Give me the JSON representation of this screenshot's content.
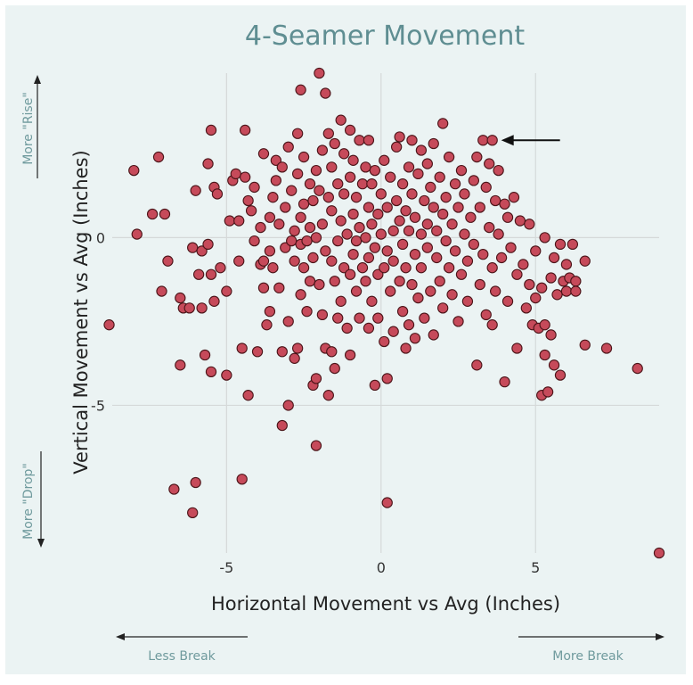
{
  "chart_data": {
    "type": "scatter",
    "title": "4-Seamer Movement",
    "xlabel": "Horizontal Movement vs Avg (Inches)",
    "ylabel": "Vertical Movement vs Avg (Inches)",
    "xlim": [
      -8.7,
      9.0
    ],
    "ylim": [
      -9.4,
      4.9
    ],
    "xticks": [
      -5,
      0,
      5
    ],
    "yticks": [
      -5,
      0
    ],
    "grid": true,
    "annotations": {
      "y_top": "More \"Rise\"",
      "y_bottom": "More \"Drop\"",
      "x_left": "Less Break",
      "x_right": "More Break",
      "arrow_target": {
        "x": 3.6,
        "y": 2.9
      }
    },
    "colors": {
      "marker": "#c64a5a",
      "marker_edge": "#4a1418",
      "title": "#5f8e92",
      "background": "#ebf3f3"
    },
    "points": [
      [
        -8.8,
        -2.6
      ],
      [
        -8.0,
        2.0
      ],
      [
        -7.9,
        0.1
      ],
      [
        -7.4,
        0.7
      ],
      [
        -7.2,
        2.4
      ],
      [
        -7.1,
        -1.6
      ],
      [
        -7.0,
        0.7
      ],
      [
        -6.9,
        -0.7
      ],
      [
        -6.7,
        -7.5
      ],
      [
        -6.5,
        -3.8
      ],
      [
        -6.5,
        -1.8
      ],
      [
        -6.4,
        -2.1
      ],
      [
        -6.2,
        -2.1
      ],
      [
        -6.1,
        -0.3
      ],
      [
        -6.1,
        -8.2
      ],
      [
        -6.0,
        -7.3
      ],
      [
        -6.0,
        1.4
      ],
      [
        -5.9,
        -1.1
      ],
      [
        -5.8,
        -0.4
      ],
      [
        -5.8,
        -2.1
      ],
      [
        -5.7,
        -3.5
      ],
      [
        -5.6,
        -0.2
      ],
      [
        -5.6,
        2.2
      ],
      [
        -5.5,
        3.2
      ],
      [
        -5.5,
        -4.0
      ],
      [
        -5.5,
        -1.1
      ],
      [
        -5.4,
        1.5
      ],
      [
        -5.4,
        -1.9
      ],
      [
        -5.3,
        1.3
      ],
      [
        -5.2,
        -0.9
      ],
      [
        -5.0,
        -1.6
      ],
      [
        -5.0,
        -4.1
      ],
      [
        -4.9,
        0.5
      ],
      [
        -4.8,
        1.7
      ],
      [
        -4.7,
        1.9
      ],
      [
        -4.6,
        0.5
      ],
      [
        -4.6,
        -0.7
      ],
      [
        -4.5,
        -7.2
      ],
      [
        -4.5,
        -3.3
      ],
      [
        -4.4,
        1.8
      ],
      [
        -4.4,
        3.2
      ],
      [
        -4.3,
        1.1
      ],
      [
        -4.3,
        -4.7
      ],
      [
        -4.2,
        0.8
      ],
      [
        -4.1,
        -0.1
      ],
      [
        -4.1,
        1.5
      ],
      [
        -4.0,
        -3.4
      ],
      [
        -3.9,
        -0.8
      ],
      [
        -3.9,
        0.3
      ],
      [
        -3.8,
        -1.5
      ],
      [
        -3.8,
        2.5
      ],
      [
        -3.8,
        -0.7
      ],
      [
        -3.7,
        -2.6
      ],
      [
        -3.6,
        -2.2
      ],
      [
        -3.6,
        -0.4
      ],
      [
        -3.6,
        0.6
      ],
      [
        -3.5,
        -0.9
      ],
      [
        -3.5,
        1.2
      ],
      [
        -3.4,
        1.7
      ],
      [
        -3.4,
        2.3
      ],
      [
        -3.3,
        -1.5
      ],
      [
        -3.3,
        0.4
      ],
      [
        -3.2,
        -3.4
      ],
      [
        -3.2,
        -5.6
      ],
      [
        -3.2,
        2.1
      ],
      [
        -3.1,
        -0.3
      ],
      [
        -3.1,
        0.9
      ],
      [
        -3.0,
        -2.5
      ],
      [
        -3.0,
        -5.0
      ],
      [
        -3.0,
        2.7
      ],
      [
        -2.9,
        -0.1
      ],
      [
        -2.9,
        1.4
      ],
      [
        -2.8,
        -0.7
      ],
      [
        -2.8,
        -3.6
      ],
      [
        -2.8,
        0.2
      ],
      [
        -2.7,
        -3.3
      ],
      [
        -2.7,
        1.9
      ],
      [
        -2.7,
        3.1
      ],
      [
        -2.6,
        -1.7
      ],
      [
        -2.6,
        -0.2
      ],
      [
        -2.6,
        0.6
      ],
      [
        -2.6,
        4.4
      ],
      [
        -2.5,
        -0.9
      ],
      [
        -2.5,
        1.0
      ],
      [
        -2.5,
        2.4
      ],
      [
        -2.4,
        -2.2
      ],
      [
        -2.4,
        -0.1
      ],
      [
        -2.3,
        -1.3
      ],
      [
        -2.3,
        0.3
      ],
      [
        -2.3,
        1.6
      ],
      [
        -2.2,
        -4.4
      ],
      [
        -2.2,
        -0.6
      ],
      [
        -2.2,
        1.1
      ],
      [
        -2.1,
        -6.2
      ],
      [
        -2.1,
        -4.2
      ],
      [
        -2.1,
        0.0
      ],
      [
        -2.1,
        2.0
      ],
      [
        -2.0,
        -1.4
      ],
      [
        -2.0,
        1.4
      ],
      [
        -2.0,
        4.9
      ],
      [
        -1.9,
        -2.3
      ],
      [
        -1.9,
        0.4
      ],
      [
        -1.9,
        2.6
      ],
      [
        -1.8,
        -3.3
      ],
      [
        -1.8,
        -0.4
      ],
      [
        -1.8,
        4.3
      ],
      [
        -1.7,
        -4.7
      ],
      [
        -1.7,
        1.2
      ],
      [
        -1.7,
        3.1
      ],
      [
        -1.6,
        -3.4
      ],
      [
        -1.6,
        -0.7
      ],
      [
        -1.6,
        0.8
      ],
      [
        -1.6,
        2.1
      ],
      [
        -1.5,
        -1.3
      ],
      [
        -1.5,
        -3.9
      ],
      [
        -1.5,
        2.8
      ],
      [
        -1.4,
        -0.1
      ],
      [
        -1.4,
        1.6
      ],
      [
        -1.4,
        -2.4
      ],
      [
        -1.3,
        -1.9
      ],
      [
        -1.3,
        0.5
      ],
      [
        -1.3,
        3.5
      ],
      [
        -1.2,
        -0.9
      ],
      [
        -1.2,
        1.3
      ],
      [
        -1.2,
        2.5
      ],
      [
        -1.1,
        -2.7
      ],
      [
        -1.1,
        0.1
      ],
      [
        -1.0,
        -3.5
      ],
      [
        -1.0,
        -1.1
      ],
      [
        -1.0,
        1.8
      ],
      [
        -1.0,
        3.2
      ],
      [
        -0.9,
        -0.5
      ],
      [
        -0.9,
        0.7
      ],
      [
        -0.9,
        2.3
      ],
      [
        -0.8,
        -1.6
      ],
      [
        -0.8,
        -0.1
      ],
      [
        -0.8,
        1.2
      ],
      [
        -0.7,
        -2.4
      ],
      [
        -0.7,
        0.3
      ],
      [
        -0.7,
        2.9
      ],
      [
        -0.6,
        -0.9
      ],
      [
        -0.6,
        1.6
      ],
      [
        -0.5,
        -1.3
      ],
      [
        -0.5,
        0.0
      ],
      [
        -0.5,
        2.1
      ],
      [
        -0.4,
        -2.7
      ],
      [
        -0.4,
        -0.6
      ],
      [
        -0.4,
        0.9
      ],
      [
        -0.4,
        2.9
      ],
      [
        -0.3,
        -1.9
      ],
      [
        -0.3,
        0.4
      ],
      [
        -0.3,
        1.6
      ],
      [
        -0.2,
        -4.4
      ],
      [
        -0.2,
        -0.3
      ],
      [
        -0.2,
        2.0
      ],
      [
        -0.1,
        -1.1
      ],
      [
        -0.1,
        0.7
      ],
      [
        -0.1,
        -2.4
      ],
      [
        0.0,
        0.1
      ],
      [
        0.0,
        1.3
      ],
      [
        0.1,
        -0.9
      ],
      [
        0.1,
        -3.1
      ],
      [
        0.1,
        2.3
      ],
      [
        0.2,
        -4.2
      ],
      [
        0.2,
        -7.9
      ],
      [
        0.2,
        -0.4
      ],
      [
        0.2,
        0.9
      ],
      [
        0.3,
        -1.6
      ],
      [
        0.3,
        1.8
      ],
      [
        0.4,
        -2.8
      ],
      [
        0.4,
        0.2
      ],
      [
        0.4,
        -0.7
      ],
      [
        0.5,
        1.1
      ],
      [
        0.5,
        2.7
      ],
      [
        0.6,
        -1.3
      ],
      [
        0.6,
        0.5
      ],
      [
        0.6,
        3.0
      ],
      [
        0.7,
        -2.2
      ],
      [
        0.7,
        -0.2
      ],
      [
        0.7,
        1.6
      ],
      [
        0.8,
        -3.3
      ],
      [
        0.8,
        -0.9
      ],
      [
        0.8,
        0.8
      ],
      [
        0.9,
        2.1
      ],
      [
        0.9,
        -2.6
      ],
      [
        0.9,
        0.2
      ],
      [
        1.0,
        -1.4
      ],
      [
        1.0,
        1.3
      ],
      [
        1.0,
        2.9
      ],
      [
        1.1,
        -0.5
      ],
      [
        1.1,
        0.6
      ],
      [
        1.1,
        -3.0
      ],
      [
        1.2,
        1.9
      ],
      [
        1.2,
        -1.8
      ],
      [
        1.3,
        0.1
      ],
      [
        1.3,
        2.6
      ],
      [
        1.3,
        -0.9
      ],
      [
        1.4,
        1.1
      ],
      [
        1.4,
        -2.4
      ],
      [
        1.5,
        0.4
      ],
      [
        1.5,
        2.2
      ],
      [
        1.5,
        -0.3
      ],
      [
        1.6,
        -1.6
      ],
      [
        1.6,
        1.5
      ],
      [
        1.7,
        0.9
      ],
      [
        1.7,
        -2.9
      ],
      [
        1.7,
        2.8
      ],
      [
        1.8,
        -0.6
      ],
      [
        1.8,
        0.2
      ],
      [
        1.9,
        1.8
      ],
      [
        1.9,
        -1.3
      ],
      [
        2.0,
        3.4
      ],
      [
        2.0,
        0.7
      ],
      [
        2.0,
        -2.1
      ],
      [
        2.1,
        -0.1
      ],
      [
        2.1,
        1.2
      ],
      [
        2.2,
        -0.9
      ],
      [
        2.2,
        2.4
      ],
      [
        2.3,
        0.4
      ],
      [
        2.3,
        -1.7
      ],
      [
        2.4,
        1.6
      ],
      [
        2.4,
        -0.4
      ],
      [
        2.5,
        -2.5
      ],
      [
        2.5,
        0.9
      ],
      [
        2.6,
        2.0
      ],
      [
        2.6,
        -1.1
      ],
      [
        2.7,
        0.1
      ],
      [
        2.7,
        1.3
      ],
      [
        2.8,
        -0.7
      ],
      [
        2.8,
        -1.9
      ],
      [
        2.9,
        0.6
      ],
      [
        3.0,
        1.7
      ],
      [
        3.0,
        -0.2
      ],
      [
        3.1,
        -3.8
      ],
      [
        3.1,
        2.4
      ],
      [
        3.2,
        -1.4
      ],
      [
        3.2,
        0.9
      ],
      [
        3.3,
        2.9
      ],
      [
        3.3,
        -0.5
      ],
      [
        3.4,
        1.5
      ],
      [
        3.4,
        -2.3
      ],
      [
        3.5,
        0.3
      ],
      [
        3.5,
        2.2
      ],
      [
        3.6,
        -0.9
      ],
      [
        3.6,
        2.9
      ],
      [
        3.6,
        -2.6
      ],
      [
        3.7,
        1.1
      ],
      [
        3.7,
        -1.6
      ],
      [
        3.8,
        2.0
      ],
      [
        3.8,
        0.1
      ],
      [
        3.9,
        -0.6
      ],
      [
        4.0,
        1.0
      ],
      [
        4.0,
        -4.3
      ],
      [
        4.1,
        -1.9
      ],
      [
        4.1,
        0.6
      ],
      [
        4.2,
        -0.3
      ],
      [
        4.3,
        1.2
      ],
      [
        4.4,
        -1.1
      ],
      [
        4.4,
        -3.3
      ],
      [
        4.5,
        0.5
      ],
      [
        4.6,
        -0.8
      ],
      [
        4.7,
        -2.1
      ],
      [
        4.8,
        0.4
      ],
      [
        4.8,
        -1.4
      ],
      [
        4.9,
        -2.6
      ],
      [
        5.0,
        -0.4
      ],
      [
        5.0,
        -1.8
      ],
      [
        5.1,
        -2.7
      ],
      [
        5.2,
        -1.5
      ],
      [
        5.2,
        -4.7
      ],
      [
        5.3,
        0.0
      ],
      [
        5.3,
        -3.5
      ],
      [
        5.3,
        -2.6
      ],
      [
        5.4,
        -4.6
      ],
      [
        5.5,
        -1.2
      ],
      [
        5.5,
        -2.9
      ],
      [
        5.6,
        -0.6
      ],
      [
        5.6,
        -3.8
      ],
      [
        5.7,
        -1.7
      ],
      [
        5.8,
        -4.1
      ],
      [
        5.8,
        -0.2
      ],
      [
        5.9,
        -1.3
      ],
      [
        6.0,
        -1.6
      ],
      [
        6.0,
        -0.8
      ],
      [
        6.1,
        -1.2
      ],
      [
        6.2,
        -0.2
      ],
      [
        6.3,
        -1.3
      ],
      [
        6.3,
        -1.6
      ],
      [
        6.6,
        -0.7
      ],
      [
        6.6,
        -3.2
      ],
      [
        7.3,
        -3.3
      ],
      [
        8.3,
        -3.9
      ],
      [
        9.0,
        -9.4
      ]
    ]
  }
}
